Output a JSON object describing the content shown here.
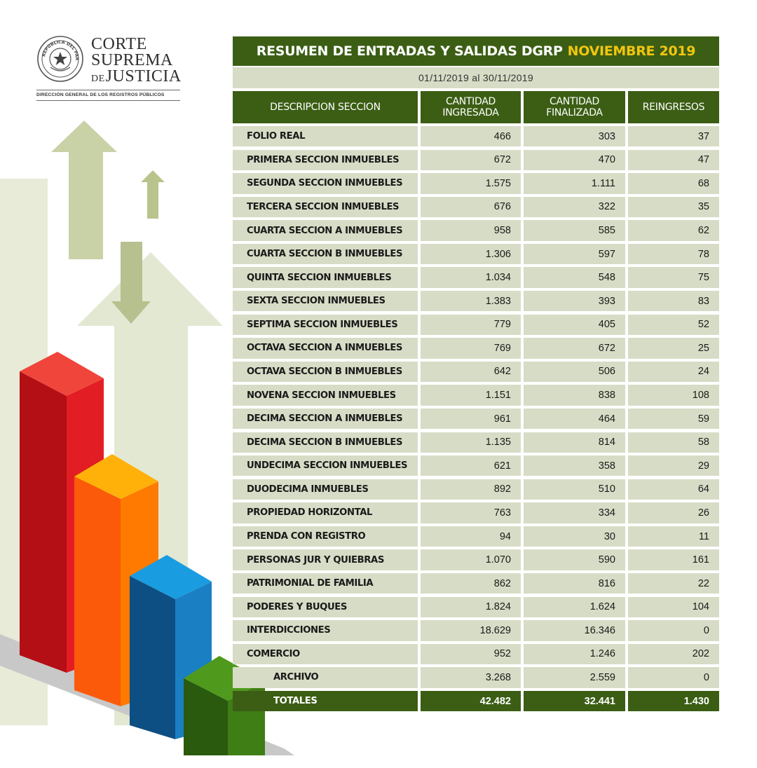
{
  "logo": {
    "line1": "CORTE",
    "line2": "SUPREMA",
    "line3_de": "DE",
    "line3_main": "JUSTICIA",
    "subtitle": "DIRECCIÓN GENERAL DE LOS REGISTROS PÚBLICOS",
    "seal_text": "REPÚBLICA DEL PARAGUAY"
  },
  "title": {
    "main": "RESUMEN DE ENTRADAS Y SALIDAS DGRP",
    "highlight": "NOVIEMBRE 2019",
    "highlight_color": "#f2c60e"
  },
  "date_range": "01/11/2019 al 30/11/2019",
  "columns": [
    "DESCRIPCION SECCION",
    "CANTIDAD INGRESADA",
    "CANTIDAD FINALIZADA",
    "REINGRESOS"
  ],
  "colors": {
    "header_green": "#3b5e14",
    "row_bg": "#d7dcc6"
  },
  "rows": [
    {
      "label": "FOLIO REAL",
      "ingresada": "466",
      "finalizada": "303",
      "reingresos": "37"
    },
    {
      "label": "PRIMERA SECCION INMUEBLES",
      "ingresada": "672",
      "finalizada": "470",
      "reingresos": "47"
    },
    {
      "label": "SEGUNDA SECCION INMUEBLES",
      "ingresada": "1.575",
      "finalizada": "1.111",
      "reingresos": "68"
    },
    {
      "label": "TERCERA SECCION INMUEBLES",
      "ingresada": "676",
      "finalizada": "322",
      "reingresos": "35"
    },
    {
      "label": "CUARTA SECCION A INMUEBLES",
      "ingresada": "958",
      "finalizada": "585",
      "reingresos": "62"
    },
    {
      "label": "CUARTA SECCION B INMUEBLES",
      "ingresada": "1.306",
      "finalizada": "597",
      "reingresos": "78"
    },
    {
      "label": "QUINTA SECCION INMUEBLES",
      "ingresada": "1.034",
      "finalizada": "548",
      "reingresos": "75"
    },
    {
      "label": "SEXTA SECCION INMUEBLES",
      "ingresada": "1.383",
      "finalizada": "393",
      "reingresos": "83"
    },
    {
      "label": "SEPTIMA SECCION INMUEBLES",
      "ingresada": "779",
      "finalizada": "405",
      "reingresos": "52"
    },
    {
      "label": "OCTAVA SECCION A INMUEBLES",
      "ingresada": "769",
      "finalizada": "672",
      "reingresos": "25"
    },
    {
      "label": "OCTAVA SECCION B INMUEBLES",
      "ingresada": "642",
      "finalizada": "506",
      "reingresos": "24"
    },
    {
      "label": "NOVENA SECCION INMUEBLES",
      "ingresada": "1.151",
      "finalizada": "838",
      "reingresos": "108"
    },
    {
      "label": "DECIMA SECCION A INMUEBLES",
      "ingresada": "961",
      "finalizada": "464",
      "reingresos": "59"
    },
    {
      "label": "DECIMA SECCION B INMUEBLES",
      "ingresada": "1.135",
      "finalizada": "814",
      "reingresos": "58"
    },
    {
      "label": "UNDECIMA SECCION INMUEBLES",
      "ingresada": "621",
      "finalizada": "358",
      "reingresos": "29"
    },
    {
      "label": "DUODECIMA INMUEBLES",
      "ingresada": "892",
      "finalizada": "510",
      "reingresos": "64"
    },
    {
      "label": "PROPIEDAD HORIZONTAL",
      "ingresada": "763",
      "finalizada": "334",
      "reingresos": "26"
    },
    {
      "label": "PRENDA CON REGISTRO",
      "ingresada": "94",
      "finalizada": "30",
      "reingresos": "11"
    },
    {
      "label": "PERSONAS JUR Y QUIEBRAS",
      "ingresada": "1.070",
      "finalizada": "590",
      "reingresos": "161"
    },
    {
      "label": "PATRIMONIAL DE FAMILIA",
      "ingresada": "862",
      "finalizada": "816",
      "reingresos": "22"
    },
    {
      "label": "PODERES Y BUQUES",
      "ingresada": "1.824",
      "finalizada": "1.624",
      "reingresos": "104"
    },
    {
      "label": "INTERDICCIONES",
      "ingresada": "18.629",
      "finalizada": "16.346",
      "reingresos": "0"
    },
    {
      "label": "COMERCIO",
      "ingresada": "952",
      "finalizada": "1.246",
      "reingresos": "202"
    },
    {
      "label": "ARCHIVO",
      "ingresada": "3.268",
      "finalizada": "2.559",
      "reingresos": "0",
      "indent": true
    }
  ],
  "totals": {
    "label": "TOTALES",
    "ingresada": "42.482",
    "finalizada": "32.441",
    "reingresos": "1.430"
  }
}
